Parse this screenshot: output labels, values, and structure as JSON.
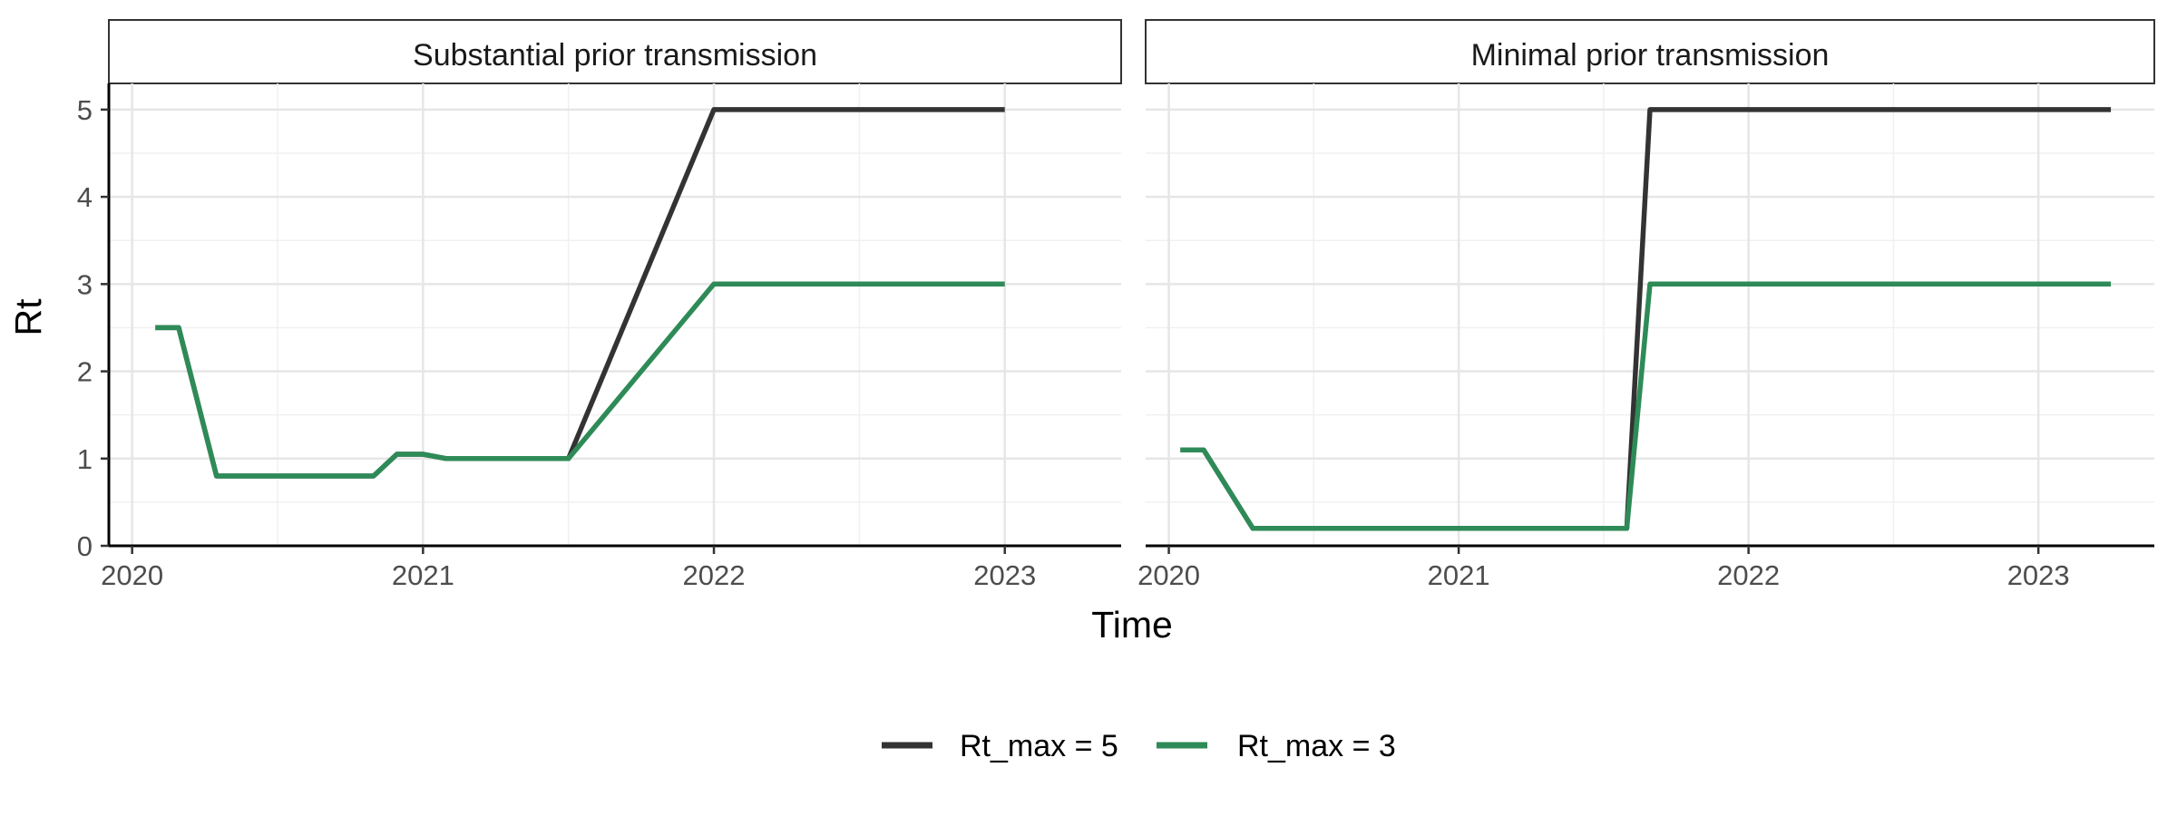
{
  "chart_data": {
    "type": "line",
    "xlabel": "Time",
    "ylabel": "Rt",
    "ylim": [
      0,
      5.3
    ],
    "yticks": [
      0,
      1,
      2,
      3,
      4,
      5
    ],
    "xticks": [
      {
        "value": 2020,
        "label": "2020"
      },
      {
        "value": 2021,
        "label": "2021"
      },
      {
        "value": 2022,
        "label": "2022"
      },
      {
        "value": 2023,
        "label": "2023"
      }
    ],
    "grid": true,
    "legend_position": "bottom",
    "legend": [
      {
        "name": "Rt_max = 5",
        "color": "#333333"
      },
      {
        "name": "Rt_max = 3",
        "color": "#2e8b57"
      }
    ],
    "panels": [
      {
        "title": "Substantial prior transmission",
        "xlim": [
          2019.92,
          2023.4
        ],
        "series": [
          {
            "name": "Rt_max = 5",
            "color": "#333333",
            "points": [
              [
                2020.08,
                2.5
              ],
              [
                2020.16,
                2.5
              ],
              [
                2020.29,
                0.8
              ],
              [
                2020.83,
                0.8
              ],
              [
                2020.91,
                1.05
              ],
              [
                2021.0,
                1.05
              ],
              [
                2021.08,
                1.0
              ],
              [
                2021.5,
                1.0
              ],
              [
                2022.0,
                5.0
              ],
              [
                2023.0,
                5.0
              ]
            ]
          },
          {
            "name": "Rt_max = 3",
            "color": "#2e8b57",
            "points": [
              [
                2020.08,
                2.5
              ],
              [
                2020.16,
                2.5
              ],
              [
                2020.29,
                0.8
              ],
              [
                2020.83,
                0.8
              ],
              [
                2020.91,
                1.05
              ],
              [
                2021.0,
                1.05
              ],
              [
                2021.08,
                1.0
              ],
              [
                2021.5,
                1.0
              ],
              [
                2022.0,
                3.0
              ],
              [
                2023.0,
                3.0
              ]
            ]
          }
        ]
      },
      {
        "title": "Minimal prior transmission",
        "xlim": [
          2019.92,
          2023.4
        ],
        "series": [
          {
            "name": "Rt_max = 5",
            "color": "#333333",
            "points": [
              [
                2020.04,
                1.1
              ],
              [
                2020.12,
                1.1
              ],
              [
                2020.29,
                0.2
              ],
              [
                2021.58,
                0.2
              ],
              [
                2021.66,
                5.0
              ],
              [
                2023.25,
                5.0
              ]
            ]
          },
          {
            "name": "Rt_max = 3",
            "color": "#2e8b57",
            "points": [
              [
                2020.04,
                1.1
              ],
              [
                2020.12,
                1.1
              ],
              [
                2020.29,
                0.2
              ],
              [
                2021.58,
                0.2
              ],
              [
                2021.66,
                3.0
              ],
              [
                2023.25,
                3.0
              ]
            ]
          }
        ]
      }
    ]
  }
}
